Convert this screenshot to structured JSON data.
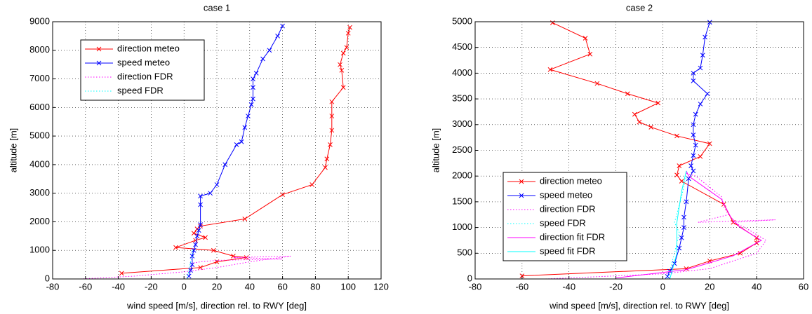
{
  "chart_data": [
    {
      "type": "line",
      "title": "case 1",
      "xlabel": "wind speed [m/s], direction rel. to RWY [deg]",
      "ylabel": "altitude [m]",
      "xlim": [
        -80,
        120
      ],
      "xticks": [
        -80,
        -60,
        -40,
        -20,
        0,
        20,
        40,
        60,
        80,
        100,
        120
      ],
      "ylim": [
        0,
        9000
      ],
      "yticks": [
        0,
        1000,
        2000,
        3000,
        4000,
        5000,
        6000,
        7000,
        8000,
        9000
      ],
      "grid": true,
      "legend": "upper left",
      "series": [
        {
          "name": "direction meteo",
          "color": "#ff0000",
          "linestyle": "solid",
          "marker": "x",
          "x": [
            101,
            100,
            99,
            97,
            95,
            96,
            97,
            90,
            90,
            90,
            89,
            87,
            86,
            78,
            60,
            37,
            10,
            8,
            6,
            13,
            7,
            -5,
            18,
            30,
            38,
            20,
            10,
            -38
          ],
          "values": [
            8800,
            8600,
            8100,
            7900,
            7500,
            7300,
            6700,
            6200,
            5700,
            5200,
            4700,
            4200,
            3900,
            3300,
            2950,
            2100,
            1850,
            1750,
            1600,
            1450,
            1350,
            1100,
            1000,
            800,
            750,
            600,
            400,
            200
          ]
        },
        {
          "name": "speed meteo",
          "color": "#0000ff",
          "linestyle": "solid",
          "marker": "x",
          "x": [
            60,
            57,
            52,
            48,
            44,
            42,
            42,
            42,
            41,
            39,
            37,
            35,
            32,
            25,
            20,
            16,
            10,
            10,
            10,
            9,
            8,
            7,
            6,
            5,
            5,
            4,
            3
          ],
          "values": [
            8850,
            8500,
            8000,
            7700,
            7200,
            7000,
            6700,
            6300,
            6100,
            5700,
            5300,
            4800,
            4700,
            4000,
            3300,
            3000,
            2900,
            2600,
            1900,
            1700,
            1500,
            1200,
            1000,
            800,
            500,
            300,
            100
          ]
        },
        {
          "name": "direction FDR",
          "color": "#ff00ff",
          "linestyle": "dotted",
          "marker": "none",
          "x": [
            -63,
            -30,
            0,
            20,
            40,
            65,
            30,
            60,
            20,
            10,
            5
          ],
          "values": [
            0,
            100,
            250,
            400,
            600,
            800,
            750,
            700,
            650,
            600,
            550
          ]
        },
        {
          "name": "speed FDR",
          "color": "#00ffff",
          "linestyle": "dotted",
          "marker": "none",
          "x": [
            2,
            3,
            4,
            5,
            5
          ],
          "values": [
            0,
            300,
            600,
            800,
            1000
          ]
        }
      ]
    },
    {
      "type": "line",
      "title": "case 2",
      "xlabel": "wind speed [m/s], direction rel. to RWY [deg]",
      "ylabel": "altitude [m]",
      "xlim": [
        -80,
        60
      ],
      "xticks": [
        -80,
        -60,
        -40,
        -20,
        0,
        20,
        40,
        60
      ],
      "ylim": [
        0,
        5000
      ],
      "yticks": [
        0,
        500,
        1000,
        1500,
        2000,
        2500,
        3000,
        3500,
        4000,
        4500,
        5000
      ],
      "grid": true,
      "legend": "lower left",
      "series": [
        {
          "name": "direction meteo",
          "color": "#ff0000",
          "linestyle": "solid",
          "marker": "x",
          "x": [
            -47,
            -33,
            -31,
            -48,
            -28,
            -15,
            -2,
            -12,
            -10,
            -5,
            6,
            20,
            16,
            7,
            6,
            8,
            26,
            30,
            40,
            40,
            33,
            20,
            10,
            -60
          ],
          "values": [
            4980,
            4680,
            4370,
            4070,
            3800,
            3600,
            3420,
            3200,
            3050,
            2950,
            2780,
            2630,
            2380,
            2200,
            2020,
            1900,
            1450,
            1100,
            800,
            700,
            500,
            350,
            200,
            60
          ]
        },
        {
          "name": "speed meteo",
          "color": "#0000ff",
          "linestyle": "solid",
          "marker": "x",
          "x": [
            20,
            18,
            17,
            16,
            13,
            13,
            19,
            16,
            14,
            13,
            13,
            14,
            13,
            12,
            13,
            11,
            10,
            9,
            9,
            8,
            7,
            5,
            3,
            2
          ],
          "values": [
            4990,
            4700,
            4350,
            4100,
            4000,
            3850,
            3600,
            3400,
            3200,
            3000,
            2800,
            2600,
            2400,
            2200,
            2100,
            1950,
            1500,
            1200,
            1000,
            800,
            600,
            300,
            150,
            50
          ]
        },
        {
          "name": "direction FDR",
          "color": "#ff00ff",
          "linestyle": "dotted",
          "marker": "none",
          "x": [
            -50,
            0,
            20,
            40,
            44,
            35,
            30,
            48,
            15,
            28,
            26,
            25,
            14,
            10
          ],
          "values": [
            0,
            100,
            200,
            500,
            750,
            1000,
            1100,
            1150,
            1100,
            1250,
            1400,
            1600,
            2000,
            2050
          ]
        },
        {
          "name": "speed FDR",
          "color": "#00ffff",
          "linestyle": "dotted",
          "marker": "none",
          "x": [
            2,
            5,
            7,
            5,
            8,
            10
          ],
          "values": [
            0,
            500,
            900,
            1100,
            1600,
            2000
          ]
        },
        {
          "name": "direction fit FDR",
          "color": "#ff00ff",
          "linestyle": "solid",
          "marker": "none",
          "x": [
            -20,
            10,
            30,
            42,
            33,
            29,
            25,
            11,
            10
          ],
          "values": [
            20,
            180,
            450,
            750,
            1000,
            1200,
            1550,
            2000,
            2100
          ]
        },
        {
          "name": "speed fit FDR",
          "color": "#00ffff",
          "linestyle": "solid",
          "marker": "none",
          "x": [
            3,
            6,
            6,
            8,
            10
          ],
          "values": [
            0,
            500,
            1100,
            1700,
            2100
          ]
        }
      ]
    }
  ]
}
